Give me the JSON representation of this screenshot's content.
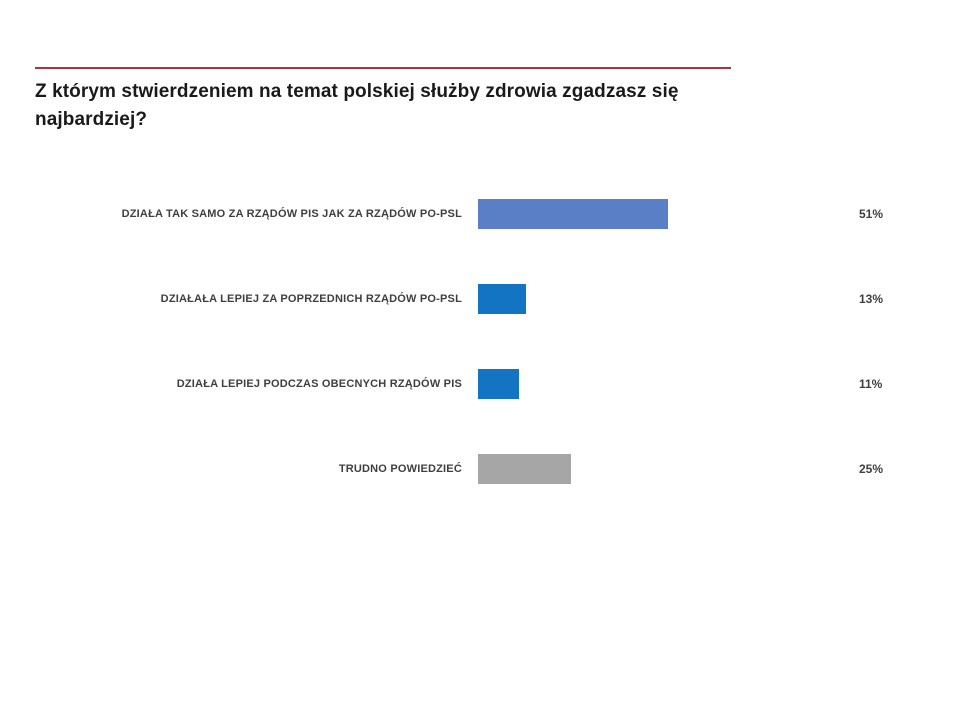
{
  "title": "Z którym stwierdzeniem na temat polskiej służby zdrowia zgadzasz się najbardziej?",
  "colors": {
    "header_rule": "#A8353A",
    "bar_light_blue": "#5B7FC7",
    "bar_blue": "#1474C4",
    "bar_gray": "#A6A6A6"
  },
  "chart_data": {
    "type": "bar",
    "orientation": "horizontal",
    "title": "Z którym stwierdzeniem na temat polskiej służby zdrowia zgadzasz się najbardziej?",
    "categories": [
      "DZIAŁA TAK SAMO ZA RZĄDÓW PIS JAK ZA RZĄDÓW PO-PSL",
      "DZIAŁAŁA LEPIEJ ZA POPRZEDNICH RZĄDÓW PO-PSL",
      "DZIAŁA LEPIEJ PODCZAS OBECNYCH RZĄDÓW PIS",
      "TRUDNO POWIEDZIEĆ"
    ],
    "values": [
      51,
      13,
      11,
      25
    ],
    "value_labels": [
      "51%",
      "13%",
      "11%",
      "25%"
    ],
    "bar_colors": [
      "#5B7FC7",
      "#1474C4",
      "#1474C4",
      "#A6A6A6"
    ],
    "xlabel": "",
    "ylabel": "",
    "xlim": [
      0,
      100
    ],
    "grid": false,
    "legend": false,
    "data_labels_position": "outside-end"
  }
}
